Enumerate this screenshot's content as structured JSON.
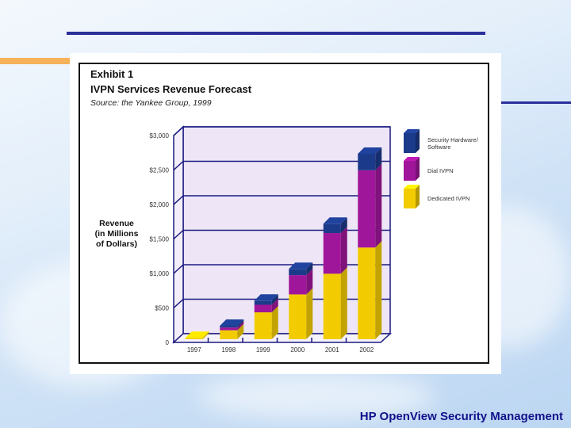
{
  "slide": {
    "footer": "HP OpenView Security Management"
  },
  "chart_data": {
    "type": "bar",
    "stacked": true,
    "title": "IVPN Services Revenue Forecast",
    "exhibit": "Exhibit 1",
    "source": "Source:  the Yankee Group, 1999",
    "xlabel": "",
    "ylabel": [
      "Revenue",
      "(in Millions",
      "of Dollars)"
    ],
    "ylim": [
      0,
      3000
    ],
    "yticks": [
      0,
      500,
      1000,
      1500,
      2000,
      2500,
      3000
    ],
    "ytick_labels": [
      "0",
      "$500",
      "$1,000",
      "$1,500",
      "$2,000",
      "$2,500",
      "$3,000"
    ],
    "categories": [
      "1997",
      "1998",
      "1999",
      "2000",
      "2001",
      "2002"
    ],
    "grid": true,
    "legend_position": "right",
    "series": [
      {
        "name": "Dedicated IVPN",
        "color": "#f2cc00",
        "values": [
          20,
          130,
          390,
          650,
          950,
          1330
        ]
      },
      {
        "name": "Dial IVPN",
        "color": "#a0169a",
        "values": [
          0,
          40,
          110,
          280,
          590,
          1120
        ]
      },
      {
        "name": "Security Hardware/ Software",
        "color": "#1c3a8a",
        "values": [
          0,
          25,
          60,
          90,
          135,
          240
        ]
      }
    ]
  }
}
